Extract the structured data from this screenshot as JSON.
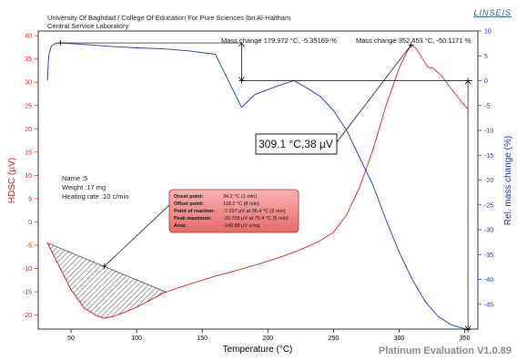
{
  "header": {
    "line1": "University Of Baghdad / College Of Education For Pure Sciences Ibn Al-Haitham",
    "line2": "Central Service Laboratory",
    "brand": "LINSEIS",
    "footer": "Platinum Evaluation V1.0.89"
  },
  "colors": {
    "dsc": "#e8201c",
    "tg": "#1c2fd6",
    "axis_left": "#e8201c",
    "axis_right": "#1c2fd6"
  },
  "chart_data": {
    "type": "line",
    "xlabel": "Temperature (°C)",
    "ylabel_left": "HDSC (µV)",
    "ylabel_right": "Rel. mass change (%)",
    "xlim": [
      25,
      360
    ],
    "ylim_left": [
      -23,
      41
    ],
    "ylim_right": [
      -50,
      10
    ],
    "x_ticks": [
      "50",
      "100",
      "150",
      "200",
      "250",
      "300",
      "350"
    ],
    "y_left_ticks": [
      "40",
      "35",
      "30",
      "25",
      "20",
      "15",
      "10",
      "5",
      "0",
      "-5",
      "-10",
      "-15",
      "-20"
    ],
    "y_right_ticks": [
      "10",
      "5",
      "0",
      "-5",
      "-10",
      "-15",
      "-20",
      "-25",
      "-30",
      "-35",
      "-40",
      "-45"
    ],
    "grid": false,
    "series": [
      {
        "name": "HDSC",
        "axis": "left",
        "points": [
          [
            32,
            -4.5
          ],
          [
            40,
            -9
          ],
          [
            50,
            -14.5
          ],
          [
            60,
            -18.5
          ],
          [
            70,
            -20.2
          ],
          [
            75.4,
            -20.7
          ],
          [
            82,
            -20.3
          ],
          [
            90,
            -19.5
          ],
          [
            100,
            -18.3
          ],
          [
            110,
            -16.8
          ],
          [
            120,
            -15.3
          ],
          [
            130,
            -14.3
          ],
          [
            140,
            -13.4
          ],
          [
            150,
            -12.5
          ],
          [
            160,
            -11.6
          ],
          [
            170,
            -10.9
          ],
          [
            180,
            -10.1
          ],
          [
            190,
            -9.3
          ],
          [
            200,
            -8.4
          ],
          [
            210,
            -7.5
          ],
          [
            220,
            -6.5
          ],
          [
            230,
            -5.3
          ],
          [
            240,
            -4.0
          ],
          [
            250,
            -2.2
          ],
          [
            260,
            1.5
          ],
          [
            270,
            7.5
          ],
          [
            280,
            15.5
          ],
          [
            290,
            25.0
          ],
          [
            300,
            33.0
          ],
          [
            305,
            36.0
          ],
          [
            309.1,
            38.0
          ],
          [
            313,
            37.3
          ],
          [
            318,
            35.0
          ],
          [
            322,
            33.2
          ],
          [
            326,
            33.0
          ],
          [
            332,
            31.5
          ],
          [
            340,
            28.5
          ],
          [
            347,
            26.0
          ],
          [
            352,
            24.3
          ]
        ]
      },
      {
        "name": "Rel. mass change",
        "axis": "right",
        "points": [
          [
            32,
            0.0
          ],
          [
            33,
            5.0
          ],
          [
            35,
            7.0
          ],
          [
            38,
            7.5
          ],
          [
            42,
            7.6
          ],
          [
            60,
            7.3
          ],
          [
            80,
            6.9
          ],
          [
            100,
            6.6
          ],
          [
            120,
            6.4
          ],
          [
            140,
            6.0
          ],
          [
            160,
            5.3
          ],
          [
            179.972,
            -5.35169
          ],
          [
            190,
            -2.8
          ],
          [
            200,
            -1.8
          ],
          [
            210,
            -0.8
          ],
          [
            220,
            0.0
          ],
          [
            230,
            -1.5
          ],
          [
            240,
            -3.2
          ],
          [
            250,
            -6.0
          ],
          [
            260,
            -10.0
          ],
          [
            270,
            -15.5
          ],
          [
            280,
            -21.0
          ],
          [
            290,
            -28.0
          ],
          [
            300,
            -34.5
          ],
          [
            310,
            -40.0
          ],
          [
            320,
            -44.5
          ],
          [
            330,
            -47.5
          ],
          [
            340,
            -49.2
          ],
          [
            352.453,
            -50.1171
          ]
        ]
      }
    ],
    "annotations": {
      "mass_change_1": "Mass change 179.972 °C, -5.35169 %",
      "mass_change_2": "Mass change 352.453 °C, -50.1171 %",
      "peak_label": "309.1 °C,38 µV",
      "sample_name": "Name :5",
      "sample_weight": "Weight :17 mg",
      "heating_rate": "Heating rate :10 c/min",
      "peak_table": [
        {
          "key": "Onset point:",
          "value": "34.2 °C (1 min)"
        },
        {
          "key": "Offset point:",
          "value": "118.2 °C (8 min)"
        },
        {
          "key": "Point of reaction:",
          "value": "-7.227 µV at 36.4 °C (2 min)"
        },
        {
          "key": "Peak maximum:",
          "value": "-20.705 µV at 75.4 °C (5 min)"
        },
        {
          "key": "Area:",
          "value": "-148.88 µV s/mg"
        }
      ]
    }
  }
}
